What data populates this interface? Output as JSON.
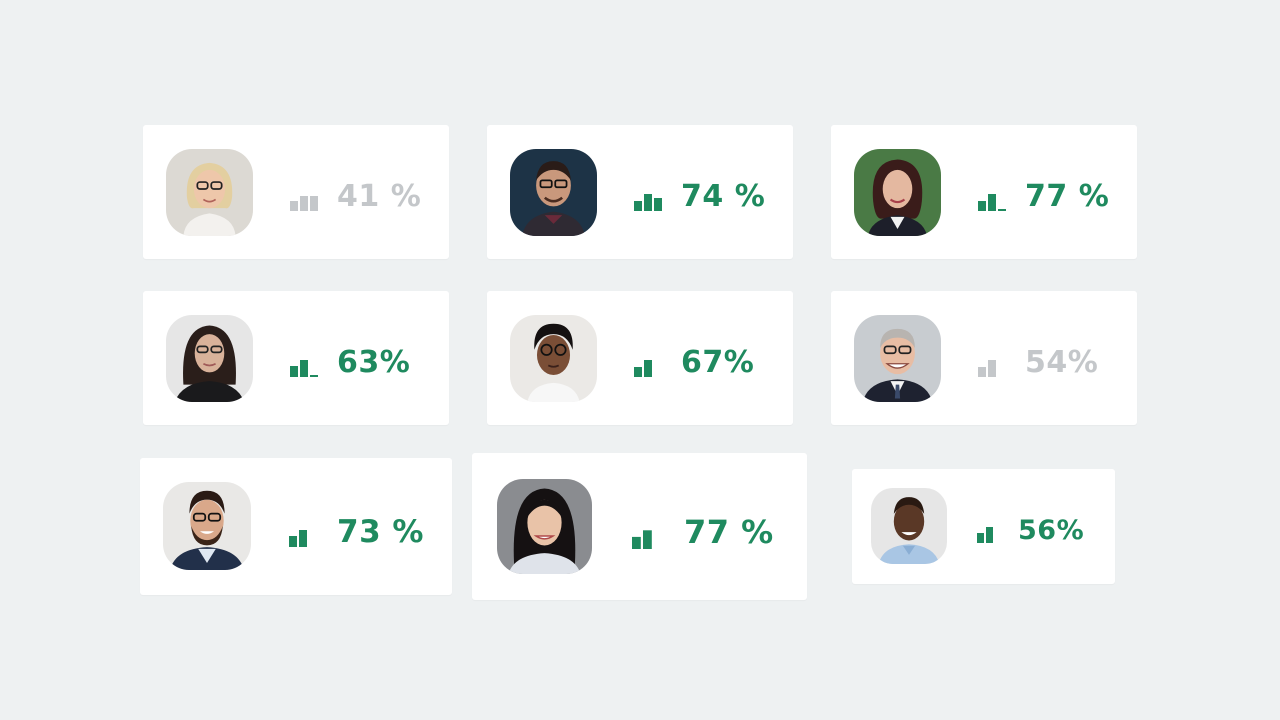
{
  "colors": {
    "background": "#eef1f2",
    "card": "#ffffff",
    "active": "#1f8a5f",
    "inactive": "#c4c7ca"
  },
  "cards": [
    {
      "person": "woman with blonde hair and glasses",
      "score": "41 %",
      "status": "inactive",
      "bar_icon": "signal-bars-icon"
    },
    {
      "person": "man with glasses and dark background",
      "score": "74 %",
      "status": "active",
      "bar_icon": "signal-bars-icon"
    },
    {
      "person": "woman with dark hair in suit",
      "score": "77 %",
      "status": "active",
      "bar_icon": "signal-bars-icon"
    },
    {
      "person": "woman with long dark hair and glasses",
      "score": "63%",
      "status": "active",
      "bar_icon": "signal-bars-icon"
    },
    {
      "person": "person with short curly hair and glasses",
      "score": "67%",
      "status": "active",
      "bar_icon": "signal-bars-icon"
    },
    {
      "person": "older man with glasses in suit",
      "score": "54%",
      "status": "inactive",
      "bar_icon": "signal-bars-icon"
    },
    {
      "person": "man with beard and glasses",
      "score": "73 %",
      "status": "active",
      "bar_icon": "signal-bars-icon"
    },
    {
      "person": "woman with long dark hair smiling",
      "score": "77 %",
      "status": "active",
      "bar_icon": "signal-bars-icon"
    },
    {
      "person": "bald man in light blue shirt",
      "score": "56%",
      "status": "active",
      "bar_icon": "signal-bars-icon"
    }
  ]
}
